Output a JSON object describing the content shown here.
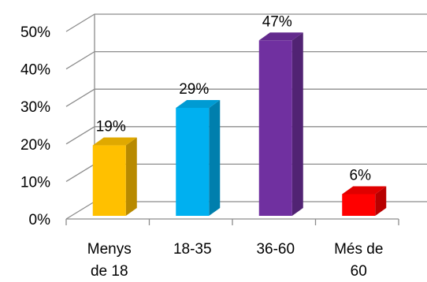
{
  "chart_data": {
    "type": "bar",
    "categories": [
      [
        "Menys",
        "de 18"
      ],
      [
        "18-35"
      ],
      [
        "36-60"
      ],
      [
        "Més de",
        "60"
      ]
    ],
    "values": [
      19,
      29,
      47,
      6
    ],
    "data_labels": [
      "19%",
      "29%",
      "47%",
      "6%"
    ],
    "ylim": [
      0,
      50
    ],
    "y_ticks": [
      0,
      10,
      20,
      30,
      40,
      50
    ],
    "y_tick_labels": [
      "0%",
      "10%",
      "20%",
      "30%",
      "40%",
      "50%"
    ],
    "grid": true,
    "legend": "none",
    "style": "3d-column",
    "colors": [
      "#FFC000",
      "#00B0F0",
      "#7030A0",
      "#FF0000"
    ]
  }
}
